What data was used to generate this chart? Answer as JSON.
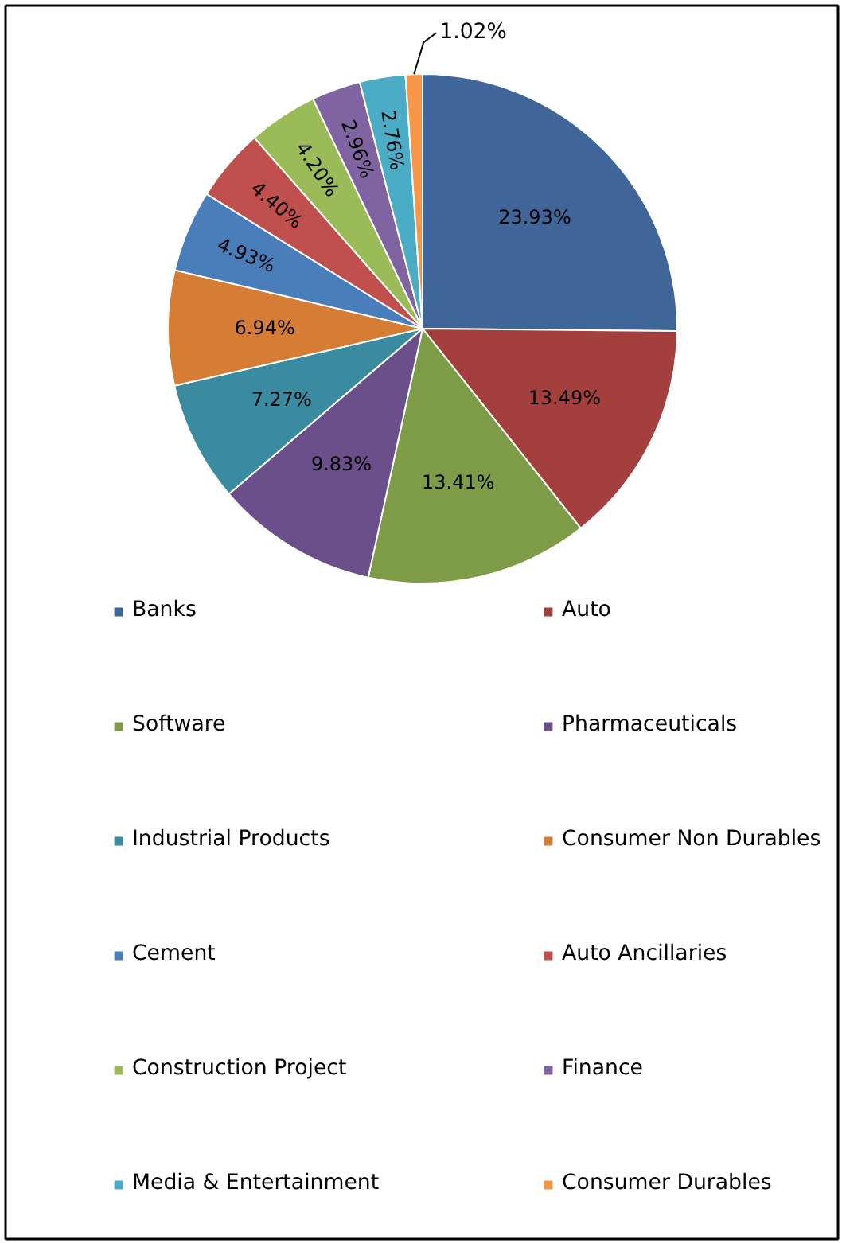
{
  "chart_data": {
    "type": "pie",
    "categories": [
      "Banks",
      "Auto",
      "Software",
      "Pharmaceuticals",
      "Industrial Products",
      "Consumer Non Durables",
      "Cement",
      "Auto Ancillaries",
      "Construction Project",
      "Finance",
      "Media & Entertainment",
      "Consumer Durables"
    ],
    "values": [
      23.93,
      13.49,
      13.41,
      9.83,
      7.27,
      6.94,
      4.93,
      4.4,
      4.2,
      2.96,
      2.76,
      1.02
    ],
    "value_labels": [
      "23.93%",
      "13.49%",
      "13.41%",
      "9.83%",
      "7.27%",
      "6.94%",
      "4.93%",
      "4.40%",
      "4.20%",
      "2.96%",
      "2.76%",
      "1.02%"
    ],
    "colors": [
      "#3f6599",
      "#a33f3c",
      "#7e9c48",
      "#6a4f8a",
      "#3a8ba0",
      "#d57c35",
      "#4a7ebb",
      "#c0504d",
      "#9bbb59",
      "#8064a2",
      "#4bacc6",
      "#f79646"
    ],
    "legend": "bottom"
  }
}
